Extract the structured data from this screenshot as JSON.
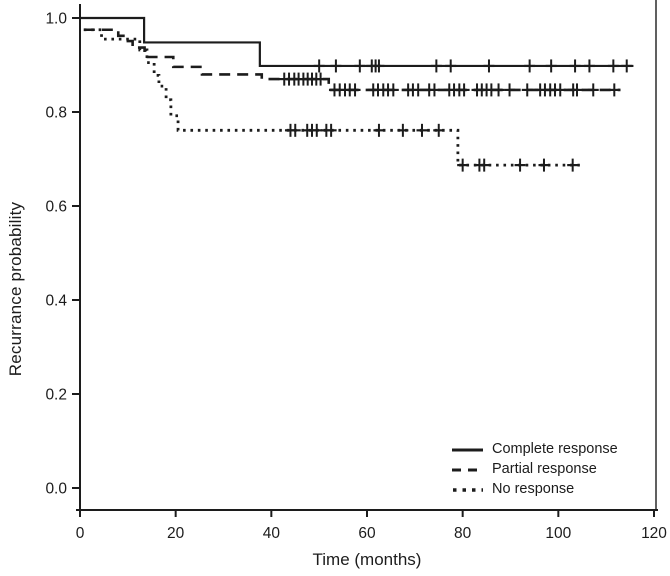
{
  "figure": {
    "background": "#ffffff",
    "ink_color": "#1c1c1c"
  },
  "chart_data": {
    "type": "line",
    "subtype": "kaplan-meier-step-curves",
    "title": "",
    "xlabel": "Time (months)",
    "ylabel": "Recurrance probability",
    "xlim": [
      0,
      120
    ],
    "ylim": [
      0.0,
      1.0
    ],
    "x_ticks": [
      0,
      20,
      40,
      60,
      80,
      100,
      120
    ],
    "x_tick_labels": [
      "0",
      "20",
      "40",
      "60",
      "80",
      "100",
      "120"
    ],
    "y_ticks": [
      0.0,
      0.2,
      0.4,
      0.6,
      0.8,
      1.0
    ],
    "y_tick_labels": [
      "0.0",
      "0.2",
      "0.4",
      "0.6",
      "0.8",
      "1.0"
    ],
    "grid": false,
    "legend_position": "lower-right",
    "series": [
      {
        "name": "Complete response",
        "line_style": "solid",
        "steps": [
          [
            0,
            1.0
          ],
          [
            13.4,
            0.948
          ],
          [
            37.6,
            0.898
          ]
        ],
        "end_t": 115.7,
        "censor_marks": [
          [
            50,
            0.898
          ],
          [
            53.5,
            0.898
          ],
          [
            58.5,
            0.898
          ],
          [
            61,
            0.898
          ],
          [
            61.8,
            0.898
          ],
          [
            62.5,
            0.898
          ],
          [
            74.5,
            0.898
          ],
          [
            77.5,
            0.898
          ],
          [
            85.5,
            0.898
          ],
          [
            94,
            0.898
          ],
          [
            98.5,
            0.898
          ],
          [
            103.5,
            0.898
          ],
          [
            106.5,
            0.898
          ],
          [
            111.5,
            0.898
          ],
          [
            114.3,
            0.898
          ]
        ]
      },
      {
        "name": "Partial response",
        "line_style": "dashed",
        "steps": [
          [
            0.8,
            0.975
          ],
          [
            8,
            0.962
          ],
          [
            9.5,
            0.951
          ],
          [
            11,
            0.937
          ],
          [
            13.5,
            0.917
          ],
          [
            19.5,
            0.896
          ],
          [
            25.5,
            0.88
          ],
          [
            38,
            0.87
          ],
          [
            52,
            0.847
          ]
        ],
        "end_t": 113,
        "censor_marks": [
          [
            42.7,
            0.87
          ],
          [
            43.7,
            0.87
          ],
          [
            44.8,
            0.87
          ],
          [
            45.7,
            0.87
          ],
          [
            46.7,
            0.87
          ],
          [
            47.6,
            0.87
          ],
          [
            48.5,
            0.87
          ],
          [
            49.4,
            0.87
          ],
          [
            50.3,
            0.87
          ],
          [
            53.2,
            0.847
          ],
          [
            54.3,
            0.847
          ],
          [
            55.4,
            0.847
          ],
          [
            56.4,
            0.847
          ],
          [
            57.5,
            0.847
          ],
          [
            61.3,
            0.847
          ],
          [
            62.3,
            0.847
          ],
          [
            63.4,
            0.847
          ],
          [
            64.4,
            0.847
          ],
          [
            65.5,
            0.847
          ],
          [
            68.6,
            0.847
          ],
          [
            69.6,
            0.847
          ],
          [
            70.7,
            0.847
          ],
          [
            73,
            0.847
          ],
          [
            74.1,
            0.847
          ],
          [
            77.2,
            0.847
          ],
          [
            78.2,
            0.847
          ],
          [
            79.3,
            0.847
          ],
          [
            80.3,
            0.847
          ],
          [
            83,
            0.847
          ],
          [
            84,
            0.847
          ],
          [
            85,
            0.847
          ],
          [
            86,
            0.847
          ],
          [
            87.5,
            0.847
          ],
          [
            89.8,
            0.847
          ],
          [
            93.5,
            0.847
          ],
          [
            96.2,
            0.847
          ],
          [
            97.2,
            0.847
          ],
          [
            98.3,
            0.847
          ],
          [
            99.3,
            0.847
          ],
          [
            100.4,
            0.847
          ],
          [
            103.1,
            0.847
          ],
          [
            103.9,
            0.847
          ],
          [
            107.3,
            0.847
          ],
          [
            111.7,
            0.847
          ]
        ]
      },
      {
        "name": "No response",
        "line_style": "dotted",
        "steps": [
          [
            0.8,
            0.975
          ],
          [
            4.5,
            0.955
          ],
          [
            12.5,
            0.932
          ],
          [
            14,
            0.905
          ],
          [
            15.5,
            0.878
          ],
          [
            16.5,
            0.855
          ],
          [
            18,
            0.826
          ],
          [
            19,
            0.792
          ],
          [
            20.5,
            0.761
          ],
          [
            79,
            0.687
          ]
        ],
        "end_t": 104.5,
        "censor_marks": [
          [
            44,
            0.761
          ],
          [
            45,
            0.761
          ],
          [
            47.5,
            0.761
          ],
          [
            48.5,
            0.761
          ],
          [
            49.5,
            0.761
          ],
          [
            51.5,
            0.761
          ],
          [
            52.5,
            0.761
          ],
          [
            62.5,
            0.761
          ],
          [
            67.5,
            0.761
          ],
          [
            71.5,
            0.761
          ],
          [
            75,
            0.761
          ],
          [
            80,
            0.687
          ],
          [
            83.5,
            0.687
          ],
          [
            84.5,
            0.687
          ],
          [
            92,
            0.687
          ],
          [
            97,
            0.687
          ],
          [
            103,
            0.687
          ]
        ]
      }
    ]
  }
}
